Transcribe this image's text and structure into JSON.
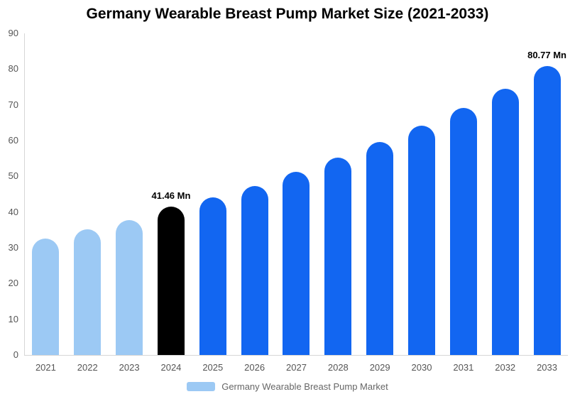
{
  "title": "Germany Wearable Breast Pump Market Size (2021-2033)",
  "legend": {
    "label": "Germany Wearable Breast Pump Market",
    "swatch_color": "#9CC9F4"
  },
  "chart_data": {
    "type": "bar",
    "title": "Germany Wearable Breast Pump Market Size (2021-2033)",
    "categories": [
      "2021",
      "2022",
      "2023",
      "2024",
      "2025",
      "2026",
      "2027",
      "2028",
      "2029",
      "2030",
      "2031",
      "2032",
      "2033"
    ],
    "values": [
      32.5,
      35.2,
      37.8,
      41.46,
      44.2,
      47.3,
      51.2,
      55.2,
      59.6,
      64.2,
      69.2,
      74.6,
      80.77
    ],
    "bar_colors": [
      "#9CC9F4",
      "#9CC9F4",
      "#9CC9F4",
      "#000000",
      "#1266F1",
      "#1266F1",
      "#1266F1",
      "#1266F1",
      "#1266F1",
      "#1266F1",
      "#1266F1",
      "#1266F1",
      "#1266F1"
    ],
    "annotations": [
      {
        "index": 3,
        "text": "41.46 Mn"
      },
      {
        "index": 12,
        "text": "80.77 Mn"
      }
    ],
    "xlabel": "",
    "ylabel": "",
    "ylim": [
      0,
      90
    ],
    "y_ticks": [
      0,
      10,
      20,
      30,
      40,
      50,
      60,
      70,
      80,
      90
    ],
    "grid": false,
    "legend_position": "bottom",
    "unit": "Mn"
  }
}
